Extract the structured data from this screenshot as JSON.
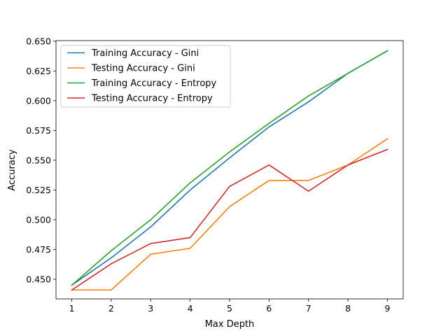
{
  "chart_data": {
    "type": "line",
    "title": "",
    "xlabel": "Max Depth",
    "ylabel": "Accuracy",
    "x": [
      1,
      2,
      3,
      4,
      5,
      6,
      7,
      8,
      9
    ],
    "xlim": [
      0.6,
      9.4
    ],
    "ylim": [
      0.4335,
      0.6505
    ],
    "xticks": [
      1,
      2,
      3,
      4,
      5,
      6,
      7,
      8,
      9
    ],
    "yticks": [
      0.45,
      0.475,
      0.5,
      0.525,
      0.55,
      0.575,
      0.6,
      0.625,
      0.65
    ],
    "ytick_labels": [
      "0.450",
      "0.475",
      "0.500",
      "0.525",
      "0.550",
      "0.575",
      "0.600",
      "0.625",
      "0.650"
    ],
    "grid": false,
    "legend_position": "top-left",
    "series": [
      {
        "name": "Training Accuracy - Gini",
        "color": "#1f77b4",
        "values": [
          0.445,
          0.468,
          0.494,
          0.525,
          0.552,
          0.578,
          0.599,
          0.623,
          0.642
        ]
      },
      {
        "name": "Testing Accuracy - Gini",
        "color": "#ff7f0e",
        "values": [
          0.441,
          0.441,
          0.471,
          0.476,
          0.511,
          0.533,
          0.533,
          0.546,
          0.568
        ]
      },
      {
        "name": "Training Accuracy - Entropy",
        "color": "#2ca02c",
        "values": [
          0.445,
          0.474,
          0.5,
          0.531,
          0.557,
          0.581,
          0.604,
          0.623,
          0.642
        ]
      },
      {
        "name": "Testing Accuracy - Entropy",
        "color": "#d62728",
        "values": [
          0.441,
          0.463,
          0.48,
          0.485,
          0.528,
          0.546,
          0.524,
          0.546,
          0.559
        ]
      }
    ]
  }
}
